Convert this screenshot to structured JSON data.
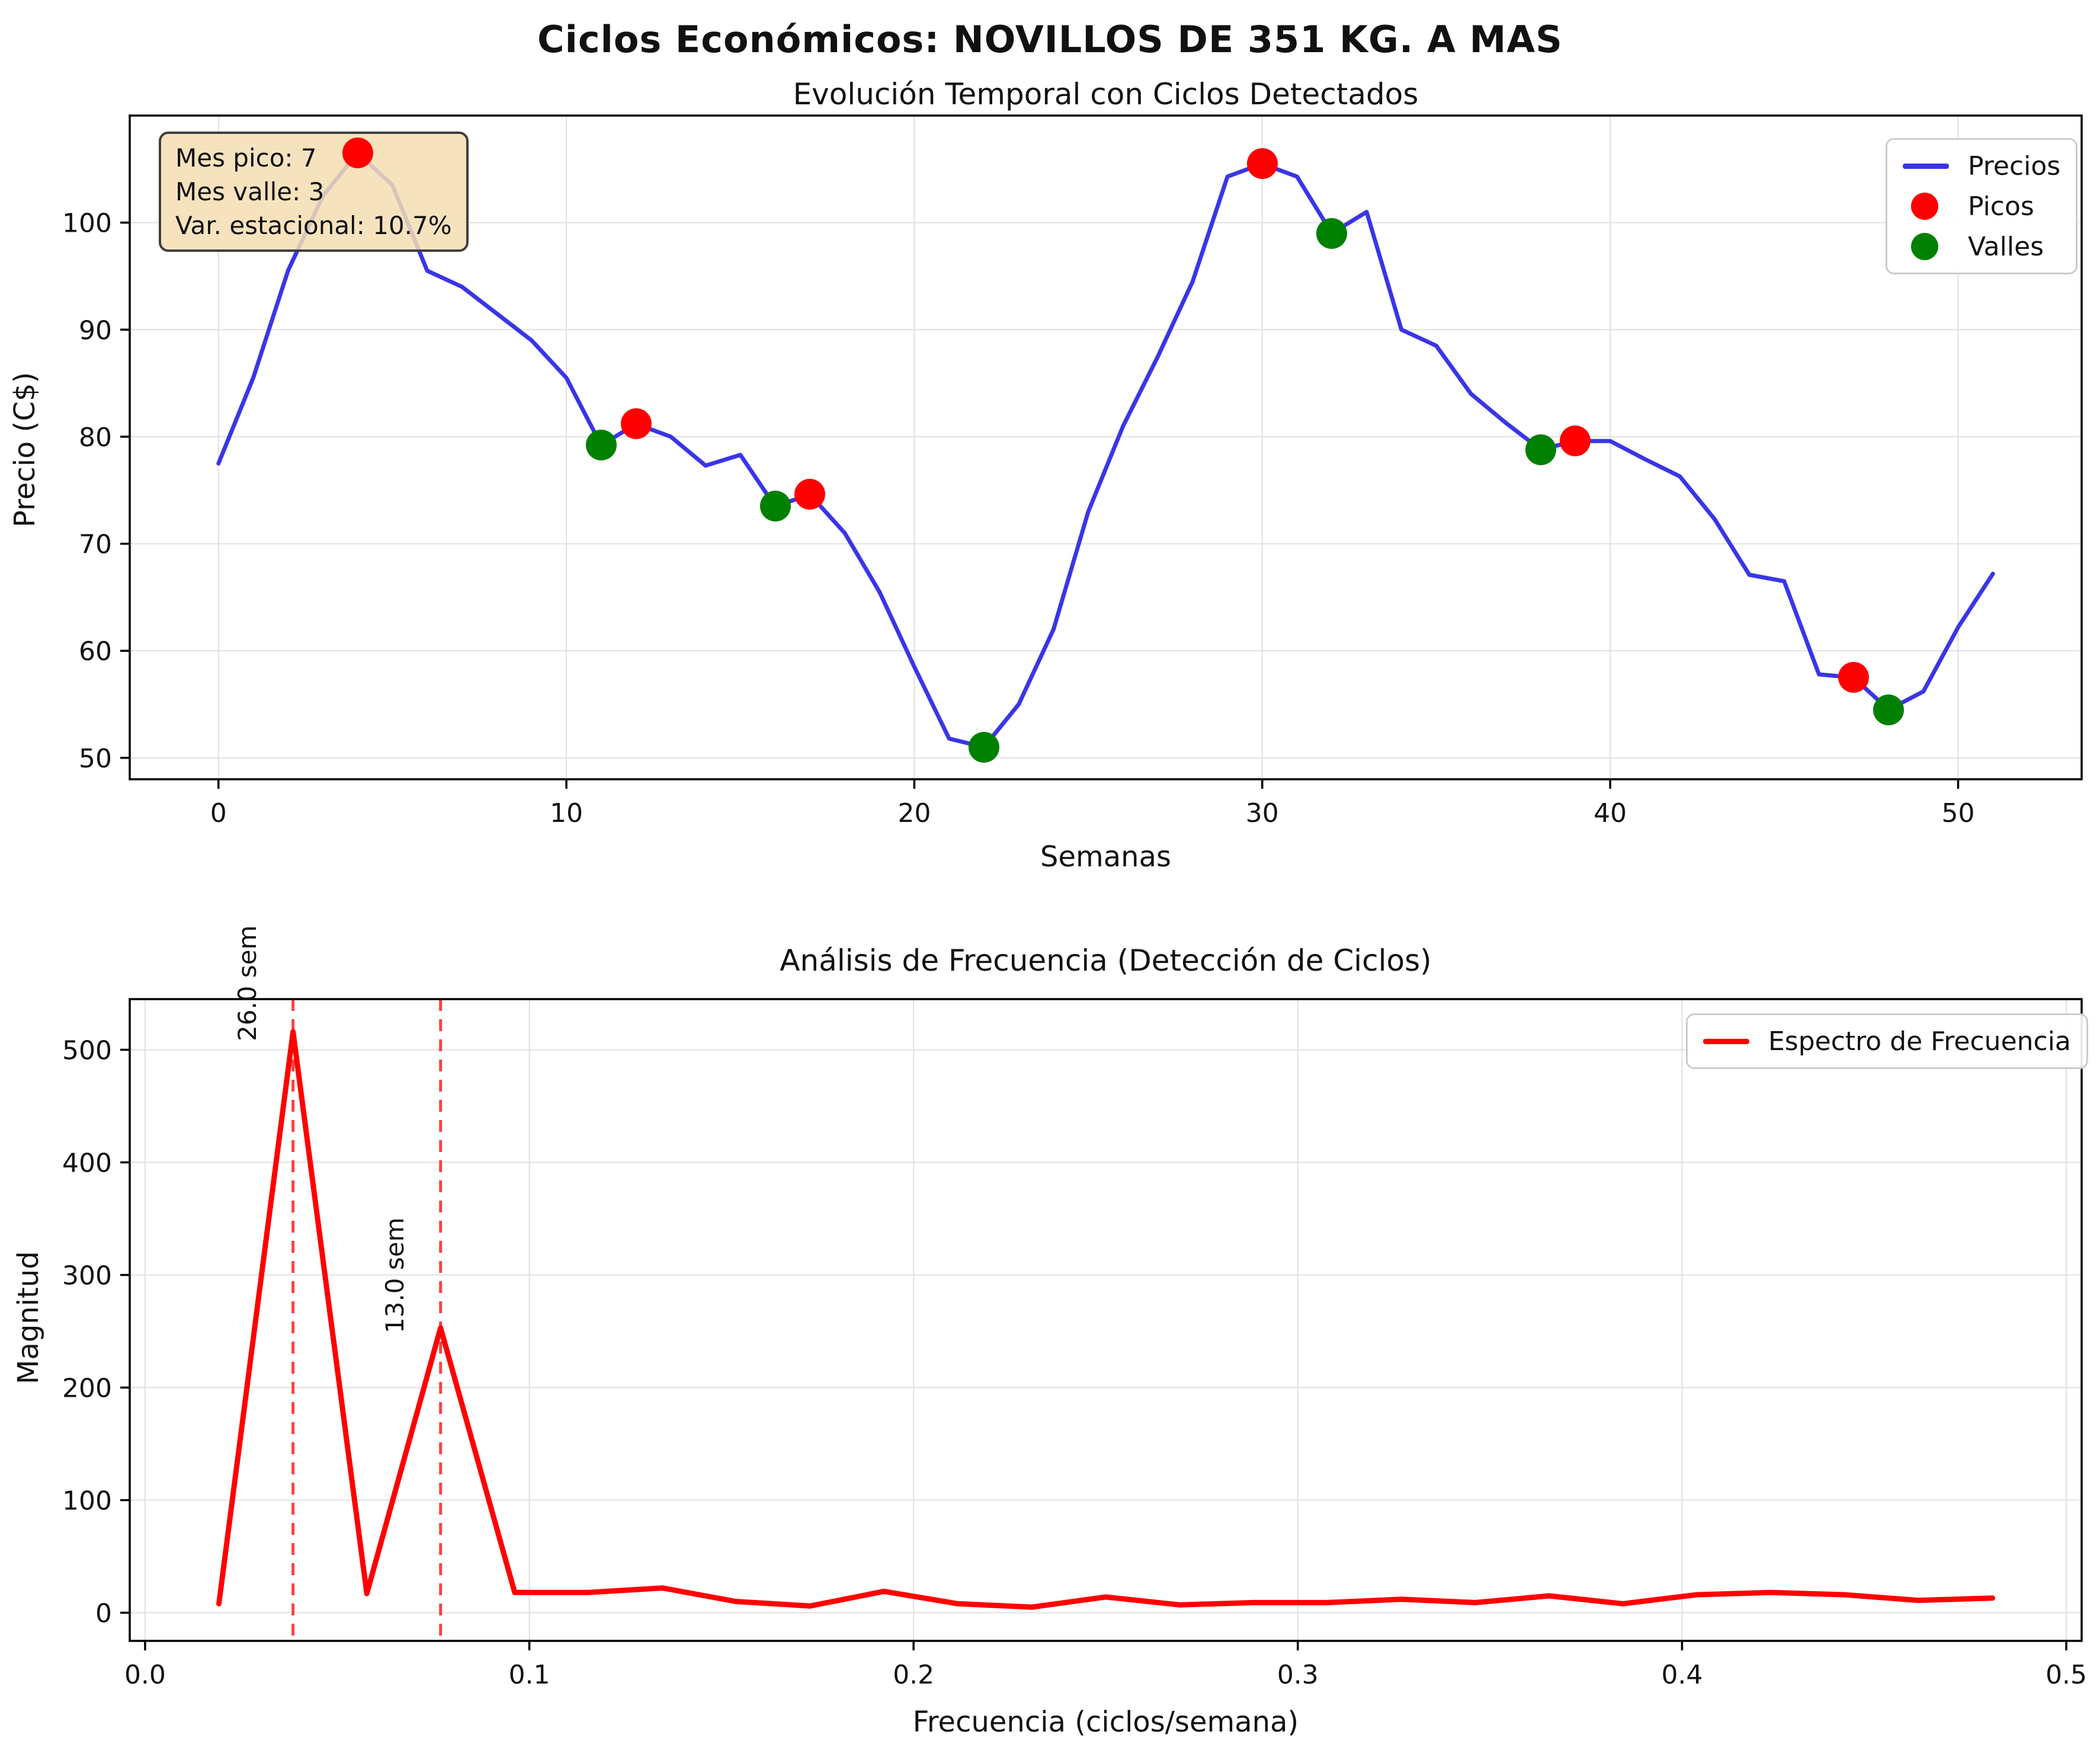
{
  "figure": {
    "suptitle": "Ciclos Económicos: NOVILLOS DE 351 KG. A MAS"
  },
  "palette": {
    "grid": "#E0E0E0",
    "spine": "#000000",
    "text": "#111111",
    "vline": "#FF4040",
    "annotation_bg": "#F5DEB3",
    "annotation_border": "#3F3F3F",
    "legend_border": "#CCCCCC",
    "price_line": "#3A35E8",
    "peak_marker": "#FF0000",
    "valley_marker": "#008000",
    "spectrum_line": "#FF0000"
  },
  "chart_data": [
    {
      "type": "line",
      "title": "Evolución Temporal con Ciclos Detectados",
      "xlabel": "Semanas",
      "ylabel": "Precio (C$)",
      "xlim": [
        -2.55,
        53.55
      ],
      "ylim": [
        48,
        110
      ],
      "grid": true,
      "legend_position": "upper right",
      "xticks": [
        0,
        10,
        20,
        30,
        40,
        50
      ],
      "xtick_labels": [
        "0",
        "10",
        "20",
        "30",
        "40",
        "50"
      ],
      "yticks": [
        50,
        60,
        70,
        80,
        90,
        100
      ],
      "ytick_labels": [
        "50",
        "60",
        "70",
        "80",
        "90",
        "100"
      ],
      "series": [
        {
          "name": "Precios",
          "color": "#3A35E8",
          "x": [
            0,
            1,
            2,
            3,
            4,
            5,
            6,
            7,
            8,
            9,
            10,
            11,
            12,
            13,
            14,
            15,
            16,
            17,
            18,
            19,
            20,
            21,
            22,
            23,
            24,
            25,
            26,
            27,
            28,
            29,
            30,
            31,
            32,
            33,
            34,
            35,
            36,
            37,
            38,
            39,
            40,
            41,
            42,
            43,
            44,
            45,
            46,
            47,
            48,
            49,
            50,
            51
          ],
          "values": [
            77.5,
            85.5,
            95.5,
            102.5,
            106.5,
            103.5,
            95.5,
            94.0,
            91.5,
            89.0,
            85.5,
            79.2,
            81.2,
            80.0,
            77.3,
            78.3,
            73.5,
            74.6,
            71.0,
            65.5,
            58.5,
            51.8,
            51.0,
            55.0,
            62.0,
            73.0,
            81.0,
            87.5,
            94.5,
            104.3,
            105.5,
            104.3,
            99.0,
            101.0,
            90.0,
            88.5,
            84.0,
            81.3,
            78.8,
            79.6,
            79.6,
            77.9,
            76.3,
            72.3,
            67.1,
            66.5,
            57.8,
            57.5,
            54.5,
            56.2,
            62.2,
            67.2
          ]
        }
      ],
      "markers": [
        {
          "name": "Picos",
          "color": "#FF0000",
          "points": [
            [
              4,
              106.5
            ],
            [
              12,
              81.2
            ],
            [
              17,
              74.6
            ],
            [
              30,
              105.5
            ],
            [
              39,
              79.6
            ],
            [
              47,
              57.5
            ]
          ]
        },
        {
          "name": "Valles",
          "color": "#008000",
          "points": [
            [
              11,
              79.2
            ],
            [
              16,
              73.5
            ],
            [
              22,
              51.0
            ],
            [
              32,
              99.0
            ],
            [
              38,
              78.8
            ],
            [
              48,
              54.5
            ]
          ]
        }
      ],
      "annotation": {
        "lines": [
          "Mes pico: 7",
          "Mes valle: 3",
          "Var. estacional: 10.7%"
        ]
      }
    },
    {
      "type": "line",
      "title": "Análisis de Frecuencia (Detección de Ciclos)",
      "xlabel": "Frecuencia (ciclos/semana)",
      "ylabel": "Magnitud",
      "xlim": [
        -0.004,
        0.504
      ],
      "ylim": [
        -25,
        545
      ],
      "grid": true,
      "legend_position": "upper right",
      "xticks": [
        0.0,
        0.1,
        0.2,
        0.3,
        0.4,
        0.5
      ],
      "xtick_labels": [
        "0.0",
        "0.1",
        "0.2",
        "0.3",
        "0.4",
        "0.5"
      ],
      "yticks": [
        0,
        100,
        200,
        300,
        400,
        500
      ],
      "ytick_labels": [
        "0",
        "100",
        "200",
        "300",
        "400",
        "500"
      ],
      "series": [
        {
          "name": "Espectro de Frecuencia",
          "color": "#FF0000",
          "x": [
            0.0192,
            0.0385,
            0.0577,
            0.0769,
            0.0962,
            0.1154,
            0.1346,
            0.1538,
            0.1731,
            0.1923,
            0.2115,
            0.2308,
            0.25,
            0.2692,
            0.2885,
            0.3077,
            0.3269,
            0.3462,
            0.3654,
            0.3846,
            0.4038,
            0.4231,
            0.4423,
            0.4615,
            0.4808
          ],
          "values": [
            8,
            516,
            17,
            253,
            18,
            18,
            22,
            10,
            6,
            19,
            8,
            5,
            14,
            7,
            9,
            9,
            12,
            9,
            15,
            8,
            16,
            18,
            16,
            11,
            13
          ]
        }
      ],
      "vlines": [
        {
          "x": 0.0385,
          "label": "26.0 sem"
        },
        {
          "x": 0.0769,
          "label": "13.0 sem"
        }
      ]
    }
  ]
}
